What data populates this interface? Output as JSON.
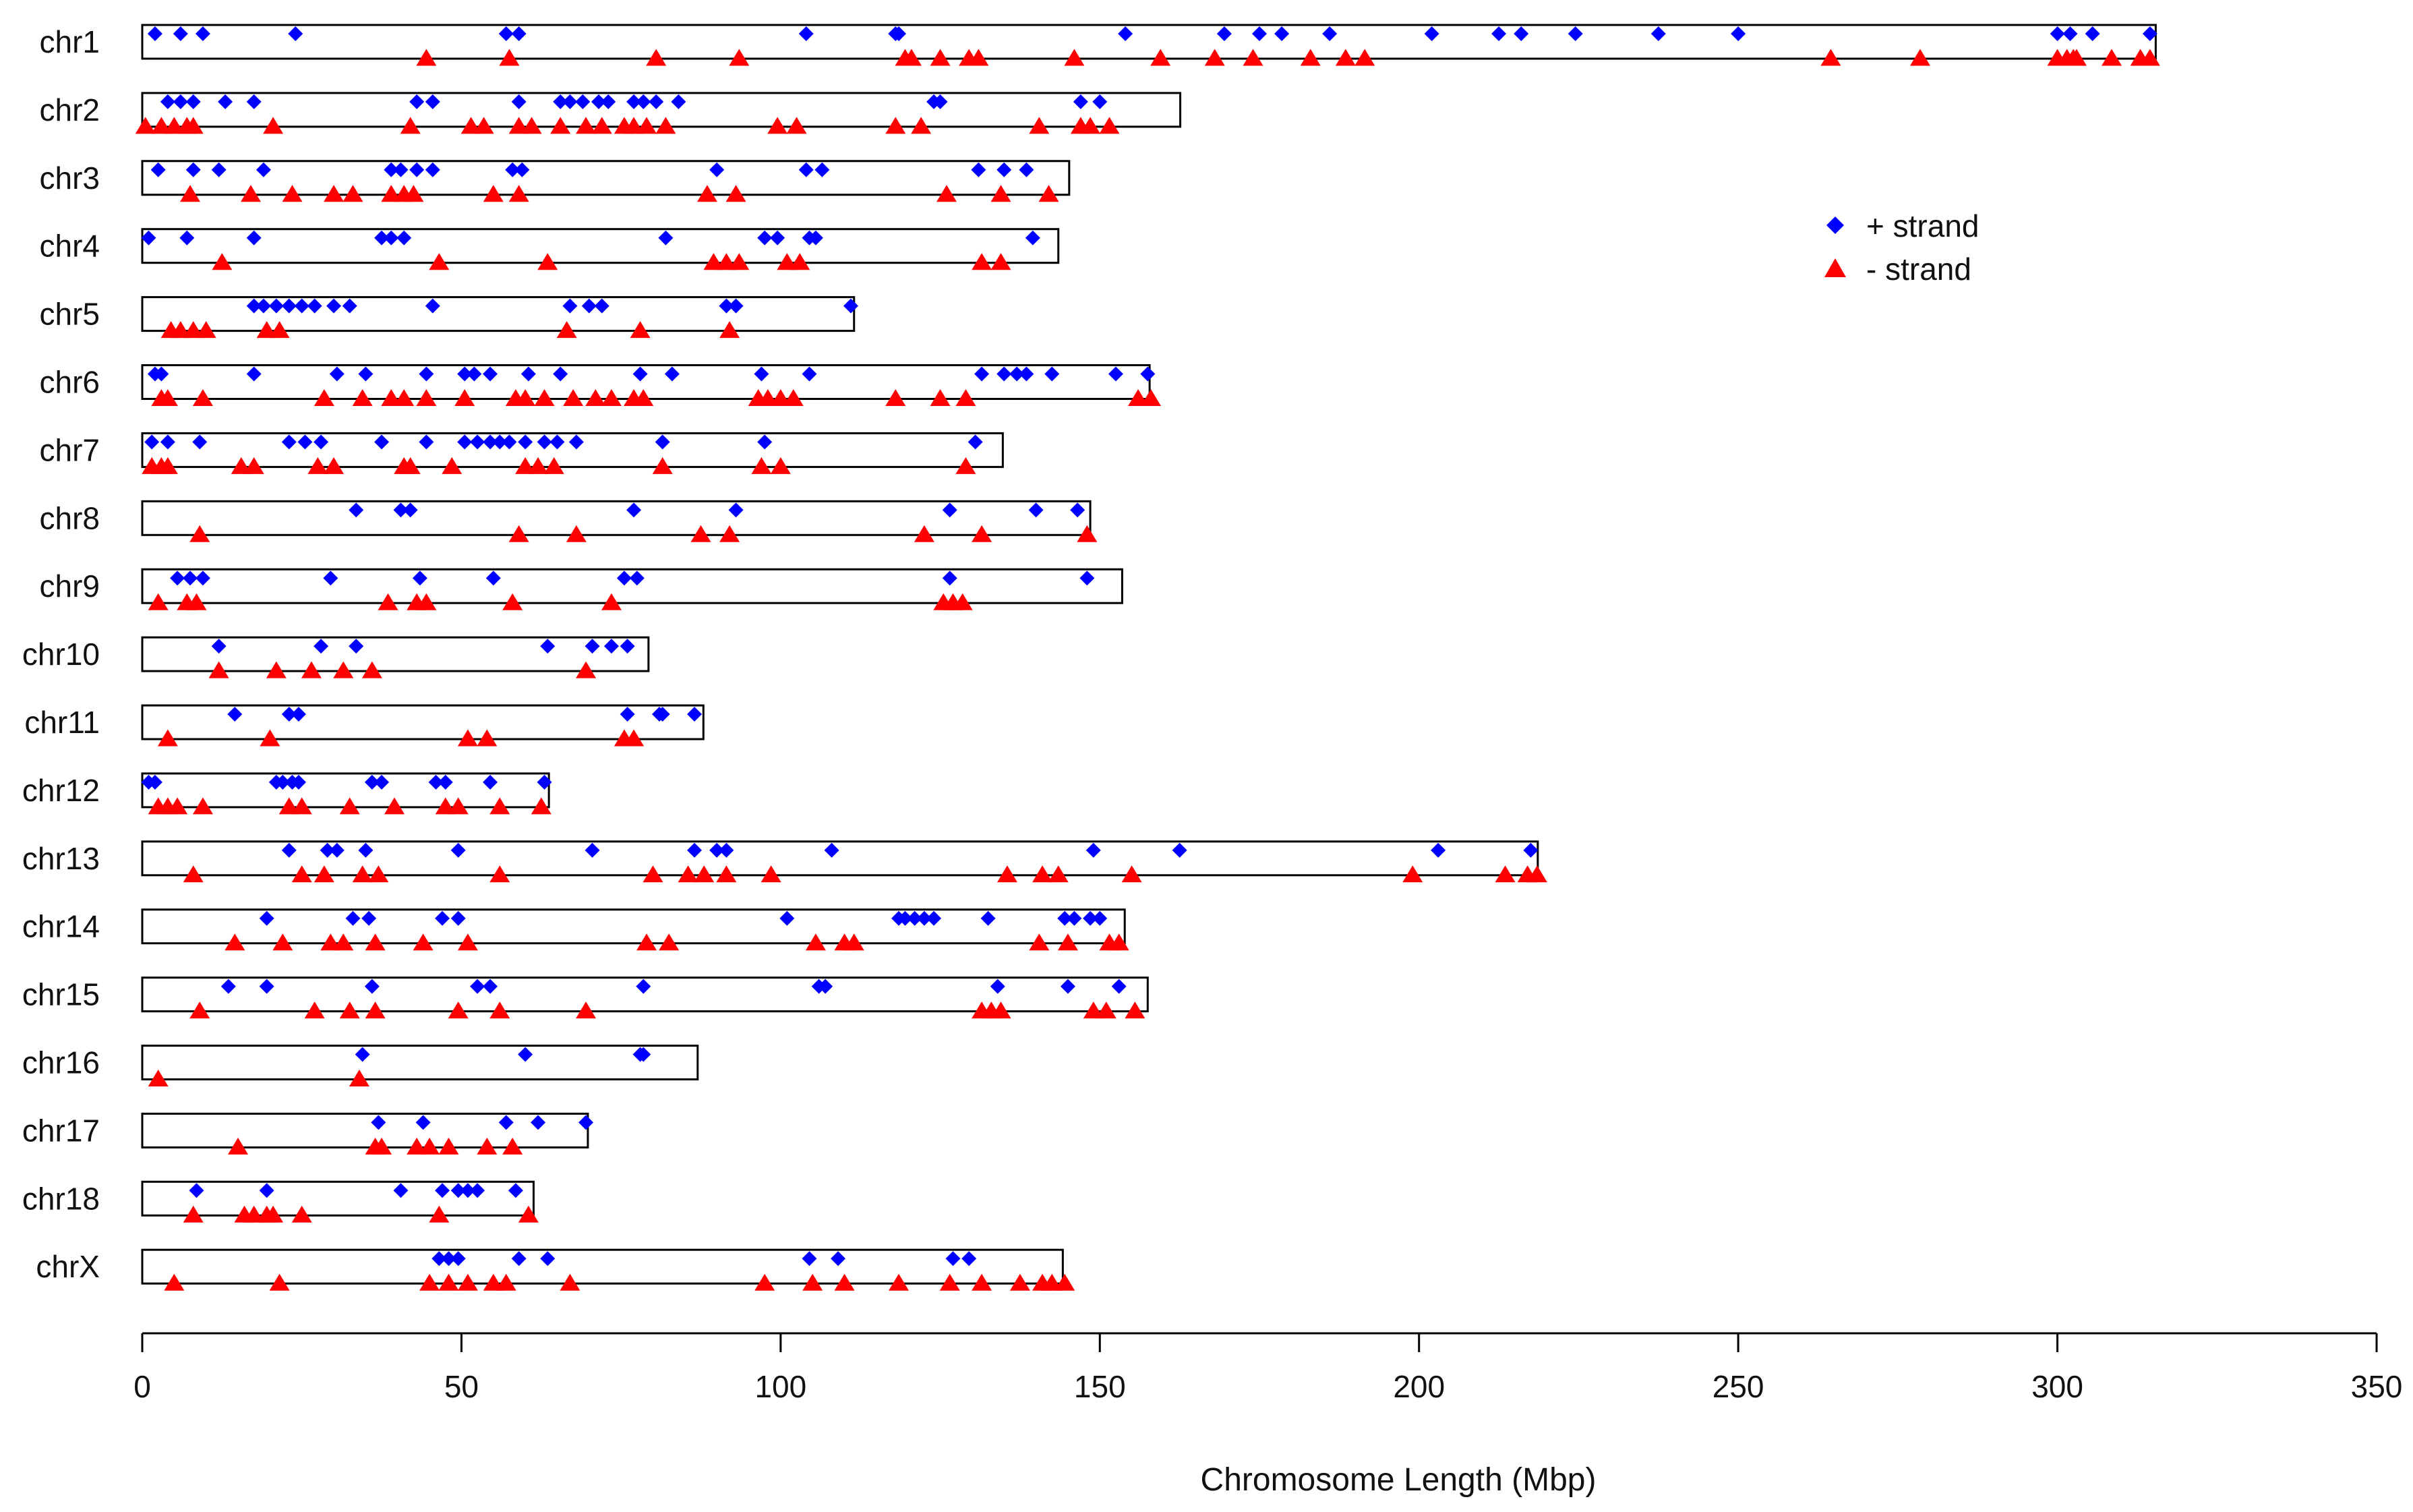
{
  "chart_data": {
    "type": "scatter",
    "title": "",
    "xlabel": "Chromosome Length (Mbp)",
    "ylabel": "",
    "xlim": [
      0,
      350
    ],
    "xticks": [
      0,
      50,
      100,
      150,
      200,
      250,
      300,
      350
    ],
    "grid": false,
    "legend_position": "top-right",
    "legend": [
      {
        "label": "+ strand",
        "marker": "diamond",
        "color": "#0000FF"
      },
      {
        "label": "- strand",
        "marker": "triangle",
        "color": "#FF0000"
      }
    ],
    "chromosomes": [
      {
        "name": "chr1",
        "length": 315.4,
        "plus": [
          2,
          6,
          9.5,
          24,
          57,
          59,
          104,
          118,
          118.5,
          154,
          169.5,
          175,
          178.5,
          186,
          202,
          212.5,
          216,
          224.5,
          237.5,
          250,
          300,
          302,
          305.5,
          314.5
        ],
        "minus": [
          44.5,
          57.5,
          80.5,
          93.5,
          119.5,
          120.5,
          125,
          129.5,
          131,
          146,
          159.5,
          168,
          174,
          183,
          188.5,
          191.5,
          264.5,
          278.5,
          300,
          301.5,
          302.5,
          303,
          308.5,
          313,
          314.5
        ]
      },
      {
        "name": "chr2",
        "length": 162.6,
        "plus": [
          4,
          6,
          8,
          13,
          17.5,
          43,
          45.5,
          59,
          65.5,
          67,
          69,
          71.5,
          73,
          77,
          78.5,
          80.5,
          84,
          124,
          125,
          147,
          150
        ],
        "minus": [
          0.5,
          3,
          5,
          7,
          8,
          20.5,
          42,
          51.5,
          53.5,
          59,
          61,
          65.5,
          69.5,
          72,
          75.5,
          77,
          79,
          82,
          99.5,
          102.5,
          118,
          122,
          140.5,
          147,
          148.5,
          151.5
        ]
      },
      {
        "name": "chr3",
        "length": 145.2,
        "plus": [
          2.5,
          8,
          12,
          19,
          39,
          40.5,
          43,
          45.5,
          58,
          59.5,
          90,
          104,
          106.5,
          131,
          135,
          138.5
        ],
        "minus": [
          7.5,
          17,
          23.5,
          30,
          33,
          39,
          41,
          42.5,
          55,
          59,
          88.5,
          93,
          126,
          134.5,
          142
        ]
      },
      {
        "name": "chr4",
        "length": 143.5,
        "plus": [
          1,
          7,
          17.5,
          37.5,
          39,
          41,
          82,
          97.5,
          99.5,
          104.5,
          105.5,
          139.5
        ],
        "minus": [
          12.5,
          46.5,
          63.5,
          89.5,
          91.5,
          93.5,
          101,
          103,
          131.5,
          134.5
        ]
      },
      {
        "name": "chr5",
        "length": 111.5,
        "plus": [
          17.5,
          19,
          21,
          23,
          25,
          27,
          30,
          32.5,
          45.5,
          67,
          70,
          72,
          91.5,
          93,
          111
        ],
        "minus": [
          4.5,
          6,
          8,
          10,
          19.5,
          21.5,
          66.5,
          78,
          92
        ]
      },
      {
        "name": "chr6",
        "length": 157.8,
        "plus": [
          2,
          3,
          17.5,
          30.5,
          35,
          44.5,
          50.5,
          52,
          54.5,
          60.5,
          65.5,
          78,
          83,
          97,
          104.5,
          131.5,
          135,
          137,
          138.5,
          142.5,
          152.5,
          157.5
        ],
        "minus": [
          3,
          4,
          9.5,
          28.5,
          34.5,
          39,
          41,
          44.5,
          50.5,
          58.5,
          60,
          63,
          67.5,
          71,
          73.5,
          77,
          78.5,
          96.5,
          98,
          100,
          102,
          118,
          125,
          129,
          156,
          158
        ]
      },
      {
        "name": "chr7",
        "length": 134.8,
        "plus": [
          1.5,
          4,
          9,
          23,
          25.5,
          28,
          37.5,
          44.5,
          50.5,
          52.5,
          54.5,
          56,
          57.5,
          60,
          63,
          65,
          68,
          81.5,
          97.5,
          130.5
        ],
        "minus": [
          1.5,
          3,
          4,
          15.5,
          17.5,
          27.5,
          30,
          41,
          42,
          48.5,
          60,
          62,
          64.5,
          81.5,
          97,
          100,
          129
        ]
      },
      {
        "name": "chr8",
        "length": 148.5,
        "plus": [
          33.5,
          40.5,
          42,
          77,
          93,
          126.5,
          140,
          146.5
        ],
        "minus": [
          9,
          59,
          68,
          87.5,
          92,
          122.5,
          131.5,
          148
        ]
      },
      {
        "name": "chr9",
        "length": 153.5,
        "plus": [
          5.5,
          7.5,
          9.5,
          29.5,
          43.5,
          55,
          75.5,
          77.5,
          126.5,
          148
        ],
        "minus": [
          2.5,
          7,
          8.5,
          38.5,
          43,
          44.5,
          58,
          73.5,
          125.5,
          127,
          128.5
        ]
      },
      {
        "name": "chr10",
        "length": 79.3,
        "plus": [
          12,
          28,
          33.5,
          63.5,
          70.5,
          73.5,
          76
        ],
        "minus": [
          12,
          21,
          26.5,
          31.5,
          36,
          69.5
        ]
      },
      {
        "name": "chr11",
        "length": 87.9,
        "plus": [
          14.5,
          23,
          24.5,
          76,
          81,
          81.5,
          86.5
        ],
        "minus": [
          4,
          20,
          51,
          54,
          75.5,
          77
        ]
      },
      {
        "name": "chr12",
        "length": 63.7,
        "plus": [
          1,
          2,
          21,
          22,
          23.5,
          24.5,
          36,
          37.5,
          46,
          47.5,
          54.5,
          63
        ],
        "minus": [
          2.5,
          4,
          5.5,
          9.5,
          23,
          25,
          32.5,
          39.5,
          47.5,
          49.5,
          56,
          62.5
        ]
      },
      {
        "name": "chr13",
        "length": 218.6,
        "plus": [
          23,
          29,
          30.5,
          35,
          49.5,
          70.5,
          86.5,
          90,
          91.5,
          108,
          149,
          162.5,
          203,
          217.5
        ],
        "minus": [
          8,
          25,
          28.5,
          34.5,
          37,
          56,
          80,
          85.5,
          88,
          91.5,
          98.5,
          135.5,
          141,
          143.5,
          155,
          199,
          213.5,
          217,
          218.5
        ]
      },
      {
        "name": "chr14",
        "length": 153.9,
        "plus": [
          19.5,
          33,
          35.5,
          47,
          49.5,
          101,
          118.5,
          119.5,
          121,
          122.5,
          124,
          132.5,
          144.5,
          146,
          148.5,
          150
        ],
        "minus": [
          14.5,
          22,
          29.5,
          31.5,
          36.5,
          44,
          51,
          79,
          82.5,
          105.5,
          110,
          111.5,
          140.5,
          145,
          151.5,
          153
        ]
      },
      {
        "name": "chr15",
        "length": 157.5,
        "plus": [
          13.5,
          19.5,
          36,
          52.5,
          54.5,
          78.5,
          106,
          107,
          134,
          145,
          153
        ],
        "minus": [
          9,
          27,
          32.5,
          36.5,
          49.5,
          56,
          69.5,
          131.5,
          133,
          134.5,
          149,
          151,
          155.5
        ]
      },
      {
        "name": "chr16",
        "length": 87,
        "plus": [
          34.5,
          60,
          78,
          78.5
        ],
        "minus": [
          2.5,
          34
        ]
      },
      {
        "name": "chr17",
        "length": 69.8,
        "plus": [
          37,
          44,
          57,
          62,
          69.5
        ],
        "minus": [
          15,
          36.5,
          37.5,
          43,
          45,
          48,
          54,
          58
        ]
      },
      {
        "name": "chr18",
        "length": 61.3,
        "plus": [
          8.5,
          19.5,
          40.5,
          47,
          49.5,
          51,
          52.5,
          58.5
        ],
        "minus": [
          8,
          16,
          17.5,
          19.5,
          20.5,
          25,
          46.5,
          60.5
        ]
      },
      {
        "name": "chrX",
        "length": 144.2,
        "plus": [
          46.5,
          48,
          49.5,
          59,
          63.5,
          104.5,
          109,
          127,
          129.5
        ],
        "minus": [
          5,
          21.5,
          45,
          48,
          51,
          55,
          57,
          67,
          97.5,
          105,
          110,
          118.5,
          126.5,
          131.5,
          137.5,
          141,
          142.5,
          144.5
        ]
      }
    ]
  }
}
